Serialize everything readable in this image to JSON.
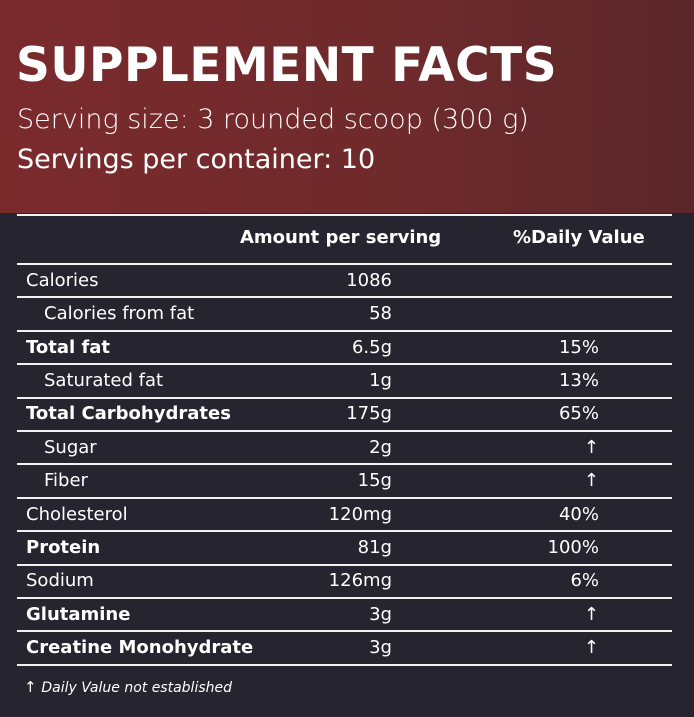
{
  "header": {
    "title": "SUPPLEMENT FACTS",
    "serving_size": "Serving size: 3 rounded scoop (300 g)",
    "servings_per_container": "Servings per container: 10"
  },
  "table": {
    "columns": [
      "Amount per serving",
      "%Daily Value"
    ],
    "rows": [
      {
        "name": "Calories",
        "amount": "1086"
      },
      {
        "name": "Calories from fat",
        "amount": "58",
        "indent": true
      },
      {
        "name": "Total fat",
        "amount": "6.5g",
        "daily_value": "15%",
        "bold": true
      },
      {
        "name": "Saturated fat",
        "amount": "1g",
        "daily_value": "13%",
        "indent": true
      },
      {
        "name": "Total Carbohydrates",
        "amount": "175g",
        "daily_value": "65%",
        "bold": true
      },
      {
        "name": "Sugar",
        "amount": "2g",
        "daily_value": "↑",
        "indent": true
      },
      {
        "name": "Fiber",
        "amount": "15g",
        "daily_value": "↑",
        "indent": true
      },
      {
        "name": "Cholesterol",
        "amount": "120mg",
        "daily_value": "40%"
      },
      {
        "name": "Protein",
        "amount": "81g",
        "daily_value": "100%",
        "bold": true
      },
      {
        "name": "Sodium",
        "amount": "126mg",
        "daily_value": "6%"
      },
      {
        "name": "Glutamine",
        "amount": "3g",
        "daily_value": "↑",
        "bold": true
      },
      {
        "name": "Creatine Monohydrate",
        "amount": "3g",
        "daily_value": "↑",
        "bold": true
      }
    ]
  },
  "footnote": {
    "symbol": "↑",
    "text": "Daily Value not established"
  }
}
